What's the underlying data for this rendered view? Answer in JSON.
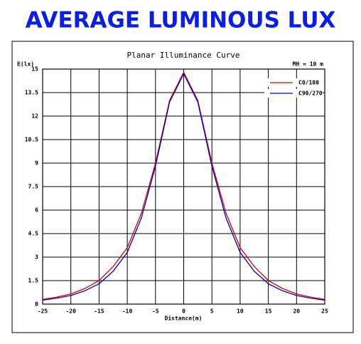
{
  "header": {
    "title": "AVERAGE LUMINOUS LUX"
  },
  "chart_data": {
    "type": "line",
    "title": "Planar Illuminance Curve",
    "y_label": "E(lx)",
    "x_label": "Distance(m)",
    "annotation": "MH = 10 m",
    "x": [
      -25,
      -22.5,
      -20,
      -17.5,
      -15,
      -12.5,
      -10,
      -7.5,
      -5,
      -2.5,
      0,
      2.5,
      5,
      7.5,
      10,
      12.5,
      15,
      17.5,
      20,
      22.5,
      25
    ],
    "series": [
      {
        "name": "C0/180",
        "color": "#e00000",
        "values": [
          0.3,
          0.45,
          0.65,
          1.0,
          1.5,
          2.4,
          3.6,
          5.8,
          9.0,
          13.0,
          14.8,
          13.0,
          9.0,
          5.8,
          3.6,
          2.4,
          1.5,
          1.0,
          0.65,
          0.45,
          0.3
        ]
      },
      {
        "name": "C90/270",
        "color": "#0000d0",
        "values": [
          0.25,
          0.38,
          0.55,
          0.85,
          1.3,
          2.1,
          3.3,
          5.5,
          8.8,
          12.9,
          14.7,
          12.9,
          8.8,
          5.5,
          3.3,
          2.1,
          1.3,
          0.85,
          0.55,
          0.38,
          0.25
        ]
      }
    ],
    "xlim": [
      -25,
      25
    ],
    "xticks": [
      -25,
      -20,
      -15,
      -10,
      -5,
      0,
      5,
      10,
      15,
      20,
      25
    ],
    "ylim": [
      0,
      15
    ],
    "yticks": [
      0,
      1.5,
      3,
      4.5,
      6,
      7.5,
      9,
      10.5,
      12,
      13.5,
      15
    ],
    "grid": true,
    "legend": "upper-right"
  }
}
